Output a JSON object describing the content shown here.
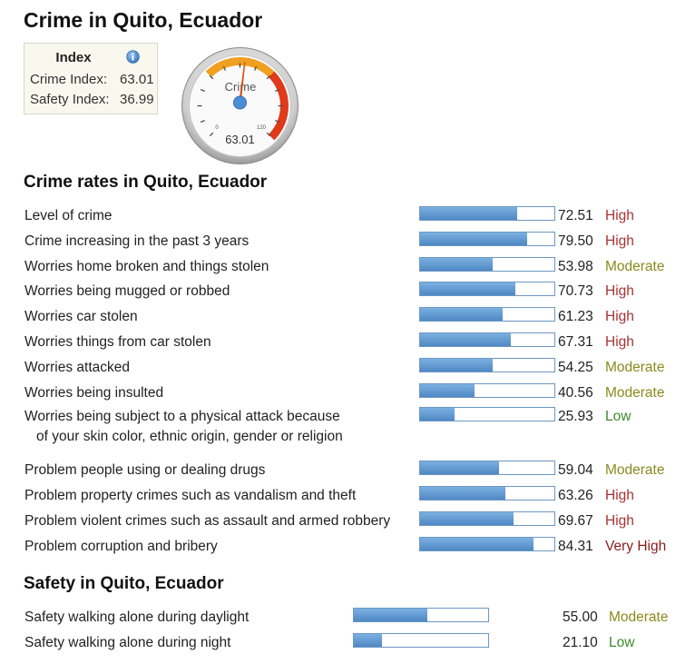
{
  "title": "Crime in Quito, Ecuador",
  "index": {
    "heading": "Index",
    "crime_label": "Crime Index:",
    "crime_value": "63.01",
    "safety_label": "Safety Index:",
    "safety_value": "36.99"
  },
  "gauge": {
    "label": "Crime",
    "value": 63.01,
    "value_text": "63.01",
    "min_text": "0",
    "max_text": "120",
    "max": 120
  },
  "crime_section": {
    "title": "Crime rates in Quito, Ecuador",
    "rows": [
      {
        "label": "Level of crime",
        "value": "72.51",
        "level": "High"
      },
      {
        "label": "Crime increasing in the past 3 years",
        "value": "79.50",
        "level": "High"
      },
      {
        "label": "Worries home broken and things stolen",
        "value": "53.98",
        "level": "Moderate"
      },
      {
        "label": "Worries being mugged or robbed",
        "value": "70.73",
        "level": "High"
      },
      {
        "label": "Worries car stolen",
        "value": "61.23",
        "level": "High"
      },
      {
        "label": "Worries things from car stolen",
        "value": "67.31",
        "level": "High"
      },
      {
        "label": "Worries attacked",
        "value": "54.25",
        "level": "Moderate"
      },
      {
        "label": "Worries being insulted",
        "value": "40.56",
        "level": "Moderate"
      },
      {
        "label": "Worries being subject to a physical attack because",
        "label2": "of your skin color, ethnic origin, gender or religion",
        "value": "25.93",
        "level": "Low"
      },
      {
        "label": "Problem people using or dealing drugs",
        "value": "59.04",
        "level": "Moderate"
      },
      {
        "label": "Problem property crimes such as vandalism and theft",
        "value": "63.26",
        "level": "High"
      },
      {
        "label": "Problem violent crimes such as assault and armed robbery",
        "value": "69.67",
        "level": "High"
      },
      {
        "label": "Problem corruption and bribery",
        "value": "84.31",
        "level": "Very High"
      }
    ]
  },
  "safety_section": {
    "title": "Safety in Quito, Ecuador",
    "rows": [
      {
        "label": "Safety walking alone during daylight",
        "value": "55.00",
        "level": "Moderate"
      },
      {
        "label": "Safety walking alone during night",
        "value": "21.10",
        "level": "Low"
      }
    ]
  },
  "level_colors": {
    "Low": "#3d8a2a",
    "Moderate": "#8a8a1e",
    "High": "#a83232",
    "Very High": "#8b1c1c"
  },
  "bar_color": "#5a92cc"
}
